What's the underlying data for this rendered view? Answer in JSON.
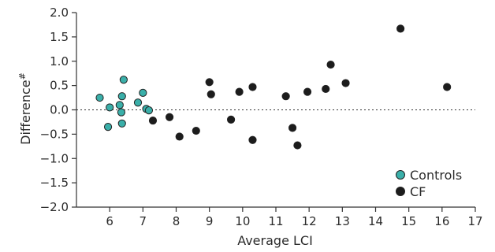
{
  "chart_data": {
    "type": "scatter",
    "xlabel": "Average LCI",
    "ylabel": "Difference",
    "ylabel_suffix": "#",
    "xlim": [
      5,
      17
    ],
    "ylim": [
      -2.0,
      2.0
    ],
    "x_ticks": [
      6,
      7,
      8,
      9,
      10,
      11,
      12,
      13,
      14,
      15,
      16,
      17
    ],
    "y_ticks": [
      2.0,
      1.5,
      1.0,
      0.5,
      0.0,
      -0.5,
      -1.0,
      -1.5,
      -2.0
    ],
    "x_tick_labels": [
      "6",
      "7",
      "8",
      "9",
      "10",
      "11",
      "12",
      "13",
      "14",
      "15",
      "16",
      "17"
    ],
    "y_tick_labels": [
      "2.0",
      "1.5",
      "1.0",
      "0.5",
      "0.0",
      "−0.5",
      "−1.0",
      "−1.5",
      "−2.0"
    ],
    "reference_line": 0.0,
    "grid": false,
    "legend_position": "bottom-right",
    "series": [
      {
        "name": "Controls",
        "color": "#3aafa9",
        "points": [
          [
            5.7,
            0.25
          ],
          [
            5.95,
            -0.35
          ],
          [
            6.0,
            0.05
          ],
          [
            6.3,
            0.1
          ],
          [
            6.35,
            -0.05
          ],
          [
            6.37,
            0.28
          ],
          [
            6.37,
            -0.28
          ],
          [
            6.42,
            0.62
          ],
          [
            6.85,
            0.15
          ],
          [
            7.0,
            0.35
          ],
          [
            7.1,
            0.02
          ],
          [
            7.18,
            -0.01
          ]
        ]
      },
      {
        "name": "CF",
        "color": "#1c1c1c",
        "points": [
          [
            7.3,
            -0.22
          ],
          [
            7.8,
            -0.15
          ],
          [
            8.1,
            -0.55
          ],
          [
            8.6,
            -0.43
          ],
          [
            9.0,
            0.57
          ],
          [
            9.05,
            0.32
          ],
          [
            9.65,
            -0.2
          ],
          [
            9.9,
            0.37
          ],
          [
            10.3,
            0.47
          ],
          [
            10.3,
            -0.62
          ],
          [
            11.3,
            0.28
          ],
          [
            11.5,
            -0.37
          ],
          [
            11.65,
            -0.73
          ],
          [
            11.95,
            0.37
          ],
          [
            12.5,
            0.43
          ],
          [
            12.65,
            0.93
          ],
          [
            13.1,
            0.55
          ],
          [
            14.75,
            1.67
          ],
          [
            16.15,
            0.47
          ]
        ]
      }
    ]
  }
}
